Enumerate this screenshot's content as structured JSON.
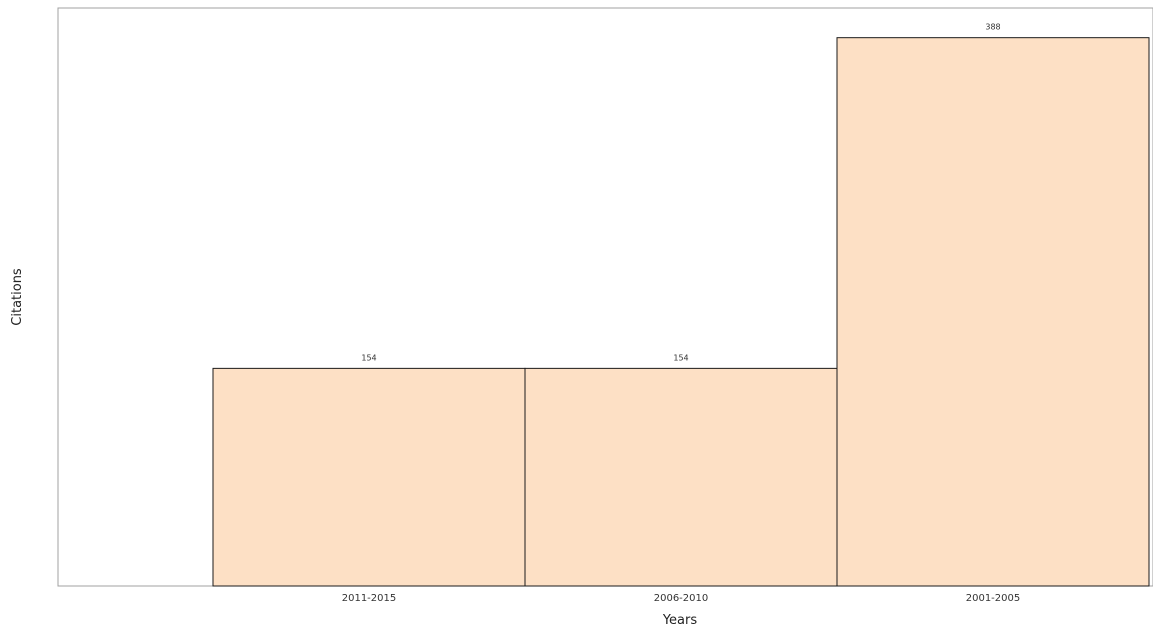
{
  "chart_data": {
    "type": "bar",
    "title": "",
    "xlabel": "Years",
    "ylabel": "Citations",
    "categories": [
      "2011-2015",
      "2006-2010",
      "2001-2005"
    ],
    "values": [
      154,
      154,
      388
    ],
    "data_labels": [
      "154",
      "154",
      "388"
    ],
    "ylim": [
      0,
      409
    ],
    "grid": false,
    "legend": "none",
    "colors": {
      "bar_fill": "#fde0c5",
      "bar_stroke": "#1a1a1a",
      "axis": "#999999"
    }
  }
}
